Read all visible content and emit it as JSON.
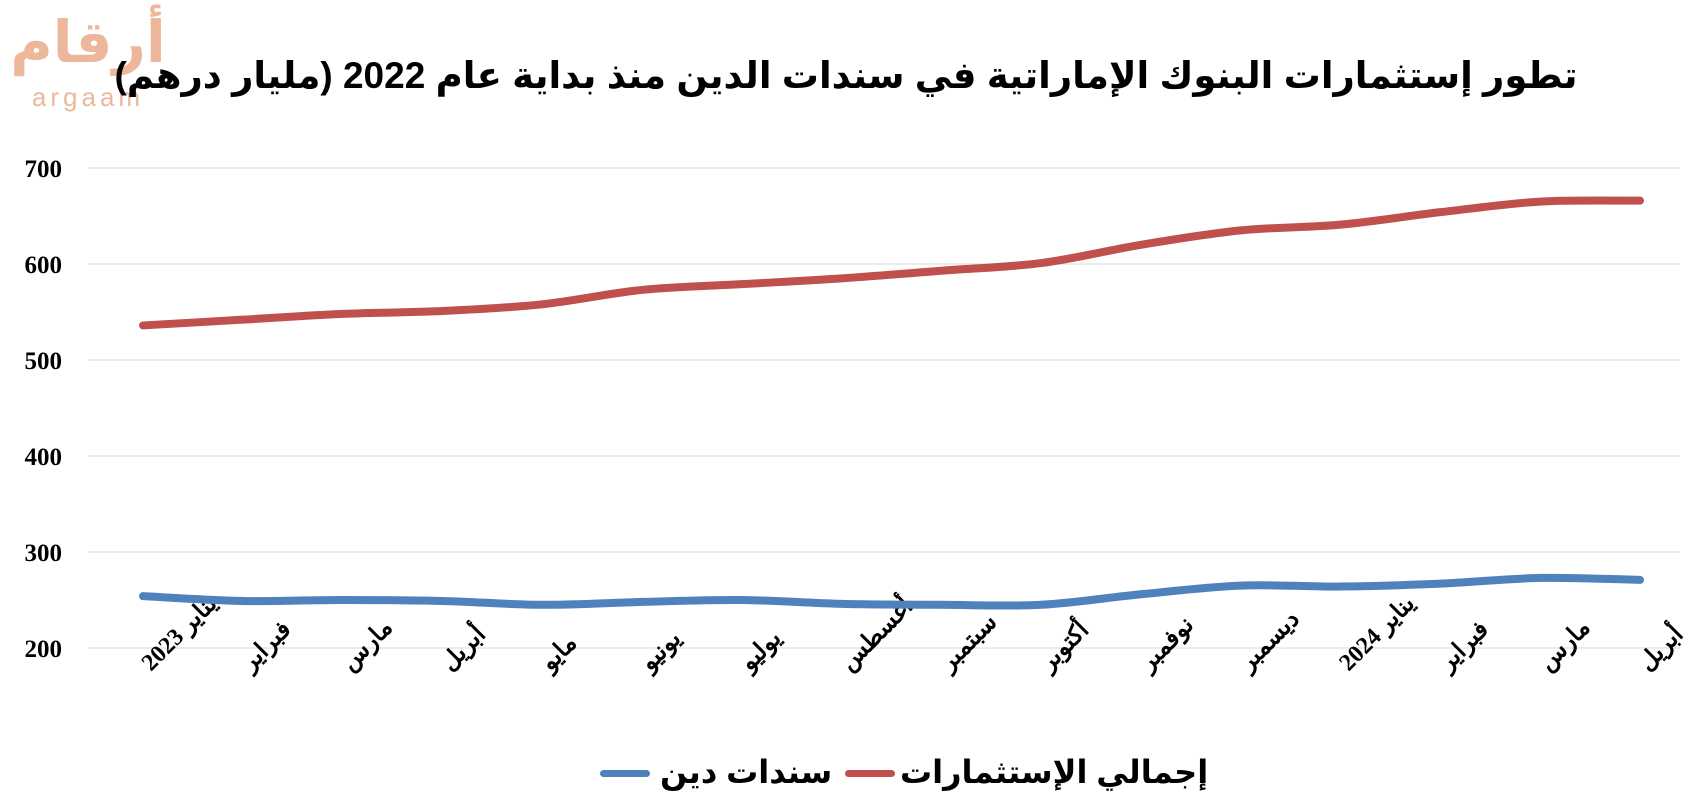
{
  "logo": {
    "arabic": "أرقام",
    "latin": "argaam",
    "color": "#e8a07a"
  },
  "chart_data": {
    "type": "line",
    "title": "تطور إستثمارات البنوك الإماراتية في سندات الدين  منذ بداية عام 2022 (مليار درهم)",
    "xlabel": "",
    "ylabel": "",
    "ylim": [
      200,
      700
    ],
    "yticks": [
      200,
      300,
      400,
      500,
      600,
      700
    ],
    "grid": true,
    "legend_position": "bottom",
    "categories": [
      "يناير 2023",
      "فبراير",
      "مارس",
      "أبريل",
      "مايو",
      "يونيو",
      "يوليو",
      "أغسطس",
      "سبتمبر",
      "أكتوبر",
      "نوفمبر",
      "ديسمبر",
      "يناير 2024",
      "فبراير",
      "مارس",
      "أبريل"
    ],
    "series": [
      {
        "name": "إجمالي الإستثمارات",
        "color": "#c0504d",
        "values": [
          536,
          542,
          548,
          551,
          558,
          573,
          579,
          585,
          593,
          601,
          620,
          635,
          641,
          654,
          665,
          666
        ]
      },
      {
        "name": "سندات دين",
        "color": "#4f81bd",
        "values": [
          254,
          249,
          250,
          249,
          245,
          248,
          250,
          246,
          245,
          245,
          256,
          265,
          264,
          267,
          273,
          271
        ]
      }
    ]
  }
}
